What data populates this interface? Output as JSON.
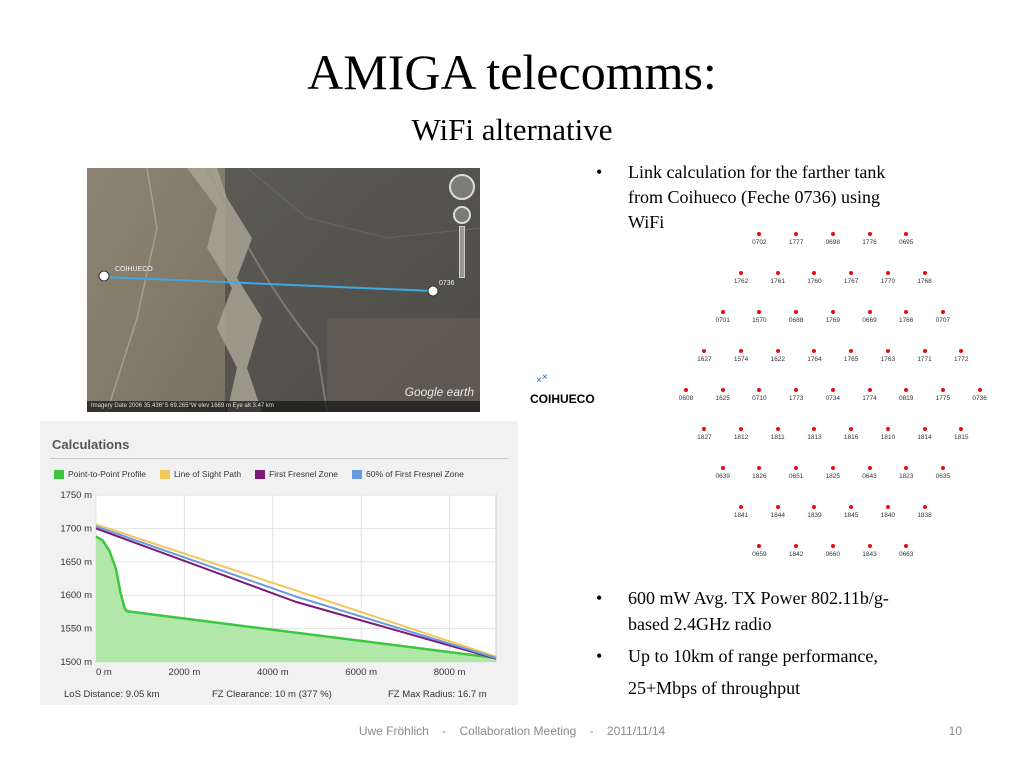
{
  "slide": {
    "title": "AMIGA telecomms:",
    "subtitle": "WiFi alternative"
  },
  "map": {
    "label_left": "COIHUECO",
    "label_right": "0736",
    "google_logo": "Google earth",
    "status_bar": "Imagery Date 2006    35.436°S  69.265°W   elev 1669 m      Eye alt  3.47 km",
    "icons": [
      "navigation-compass-icon",
      "look-control-icon",
      "zoom-slider-icon",
      "placemark-icon"
    ]
  },
  "calculations": {
    "title": "Calculations",
    "legend": [
      {
        "label": "Point-to-Point Profile",
        "color": "#3ec63e"
      },
      {
        "label": "Line of Sight Path",
        "color": "#f2c65a"
      },
      {
        "label": "First Fresnel Zone",
        "color": "#7a1a7a"
      },
      {
        "label": "60% of First Fresnel Zone",
        "color": "#6a9ae0"
      }
    ],
    "footer": {
      "los_distance": "LoS Distance:  9.05 km",
      "fz_clearance": "FZ Clearance:  10 m  (377 %)",
      "fz_max_radius": "FZ Max Radius:  16.7 m"
    }
  },
  "chart_data": {
    "type": "area",
    "xlabel": "",
    "ylabel": "",
    "xlim": [
      0,
      9050
    ],
    "ylim": [
      1500,
      1750
    ],
    "x_ticks": [
      0,
      2000,
      4000,
      6000,
      8000
    ],
    "x_tick_labels": [
      "0 m",
      "2000 m",
      "4000 m",
      "6000 m",
      "8000 m"
    ],
    "y_ticks": [
      1500,
      1550,
      1600,
      1650,
      1700,
      1750
    ],
    "y_tick_labels": [
      "1500 m",
      "1550 m",
      "1600 m",
      "1650 m",
      "1700 m",
      "1750 m"
    ],
    "grid": true,
    "series": [
      {
        "name": "Point-to-Point Profile",
        "color": "#3ec63e",
        "kind": "area",
        "x": [
          0,
          150,
          300,
          450,
          550,
          650,
          700,
          9050
        ],
        "y": [
          1688,
          1682,
          1667,
          1640,
          1605,
          1580,
          1576,
          1506
        ]
      },
      {
        "name": "Line of Sight Path",
        "color": "#f2c65a",
        "kind": "line",
        "x": [
          0,
          9050
        ],
        "y": [
          1706,
          1508
        ]
      },
      {
        "name": "First Fresnel Zone",
        "color": "#7a1a7a",
        "kind": "line",
        "x": [
          0,
          4525,
          9050
        ],
        "y": [
          1700,
          1590,
          1505
        ]
      },
      {
        "name": "60% of First Fresnel Zone",
        "color": "#6a9ae0",
        "kind": "line",
        "x": [
          0,
          4525,
          9050
        ],
        "y": [
          1703,
          1598,
          1506
        ]
      }
    ]
  },
  "coihueco_label": "COIHUECO",
  "tanks": [
    {
      "id": "0702",
      "row": 0,
      "col": 2
    },
    {
      "id": "1777",
      "row": 0,
      "col": 3
    },
    {
      "id": "0698",
      "row": 0,
      "col": 4
    },
    {
      "id": "1776",
      "row": 0,
      "col": 5
    },
    {
      "id": "0695",
      "row": 0,
      "col": 6
    },
    {
      "id": "1762",
      "row": 1,
      "col": 1.5
    },
    {
      "id": "1761",
      "row": 1,
      "col": 2.5
    },
    {
      "id": "1760",
      "row": 1,
      "col": 3.5
    },
    {
      "id": "1767",
      "row": 1,
      "col": 4.5
    },
    {
      "id": "1770",
      "row": 1,
      "col": 5.5
    },
    {
      "id": "1768",
      "row": 1,
      "col": 6.5
    },
    {
      "id": "0701",
      "row": 2,
      "col": 1
    },
    {
      "id": "1570",
      "row": 2,
      "col": 2
    },
    {
      "id": "0688",
      "row": 2,
      "col": 3
    },
    {
      "id": "1769",
      "row": 2,
      "col": 4
    },
    {
      "id": "0669",
      "row": 2,
      "col": 5
    },
    {
      "id": "1766",
      "row": 2,
      "col": 6
    },
    {
      "id": "0707",
      "row": 2,
      "col": 7
    },
    {
      "id": "1627",
      "row": 3,
      "col": 0.5
    },
    {
      "id": "1574",
      "row": 3,
      "col": 1.5
    },
    {
      "id": "1622",
      "row": 3,
      "col": 2.5
    },
    {
      "id": "1764",
      "row": 3,
      "col": 3.5
    },
    {
      "id": "1765",
      "row": 3,
      "col": 4.5
    },
    {
      "id": "1763",
      "row": 3,
      "col": 5.5
    },
    {
      "id": "1771",
      "row": 3,
      "col": 6.5
    },
    {
      "id": "1772",
      "row": 3,
      "col": 7.5
    },
    {
      "id": "0608",
      "row": 4,
      "col": 0
    },
    {
      "id": "1625",
      "row": 4,
      "col": 1
    },
    {
      "id": "0710",
      "row": 4,
      "col": 2
    },
    {
      "id": "1773",
      "row": 4,
      "col": 3
    },
    {
      "id": "0734",
      "row": 4,
      "col": 4
    },
    {
      "id": "1774",
      "row": 4,
      "col": 5
    },
    {
      "id": "0819",
      "row": 4,
      "col": 6
    },
    {
      "id": "1775",
      "row": 4,
      "col": 7
    },
    {
      "id": "0736",
      "row": 4,
      "col": 8
    },
    {
      "id": "1827",
      "row": 5,
      "col": 0.5
    },
    {
      "id": "1812",
      "row": 5,
      "col": 1.5
    },
    {
      "id": "1811",
      "row": 5,
      "col": 2.5
    },
    {
      "id": "1813",
      "row": 5,
      "col": 3.5
    },
    {
      "id": "1816",
      "row": 5,
      "col": 4.5
    },
    {
      "id": "1810",
      "row": 5,
      "col": 5.5
    },
    {
      "id": "1814",
      "row": 5,
      "col": 6.5
    },
    {
      "id": "1815",
      "row": 5,
      "col": 7.5
    },
    {
      "id": "0639",
      "row": 6,
      "col": 1
    },
    {
      "id": "1826",
      "row": 6,
      "col": 2
    },
    {
      "id": "0651",
      "row": 6,
      "col": 3
    },
    {
      "id": "1825",
      "row": 6,
      "col": 4
    },
    {
      "id": "0643",
      "row": 6,
      "col": 5
    },
    {
      "id": "1823",
      "row": 6,
      "col": 6
    },
    {
      "id": "0635",
      "row": 6,
      "col": 7
    },
    {
      "id": "1841",
      "row": 7,
      "col": 1.5
    },
    {
      "id": "1844",
      "row": 7,
      "col": 2.5
    },
    {
      "id": "1839",
      "row": 7,
      "col": 3.5
    },
    {
      "id": "1845",
      "row": 7,
      "col": 4.5
    },
    {
      "id": "1840",
      "row": 7,
      "col": 5.5
    },
    {
      "id": "1838",
      "row": 7,
      "col": 6.5
    },
    {
      "id": "0659",
      "row": 8,
      "col": 2
    },
    {
      "id": "1842",
      "row": 8,
      "col": 3
    },
    {
      "id": "0660",
      "row": 8,
      "col": 4
    },
    {
      "id": "1843",
      "row": 8,
      "col": 5
    },
    {
      "id": "0663",
      "row": 8,
      "col": 6
    }
  ],
  "bullets_top": {
    "item1_line1": "Link calculation for the farther tank",
    "item1_line2": "from Coihueco (Feche 0736) using",
    "item1_line3": "WiFi"
  },
  "bullets_bottom": {
    "item1_line1": "600 mW Avg. TX Power 802.11b/g-",
    "item1_line2": "based 2.4GHz radio",
    "item2_line1": "Up to 10km of range performance,",
    "item2_line2": "25+Mbps of throughput"
  },
  "footer": {
    "text": "Uwe Fröhlich    -    Collaboration Meeting    -    2011/11/14",
    "page": "10"
  }
}
